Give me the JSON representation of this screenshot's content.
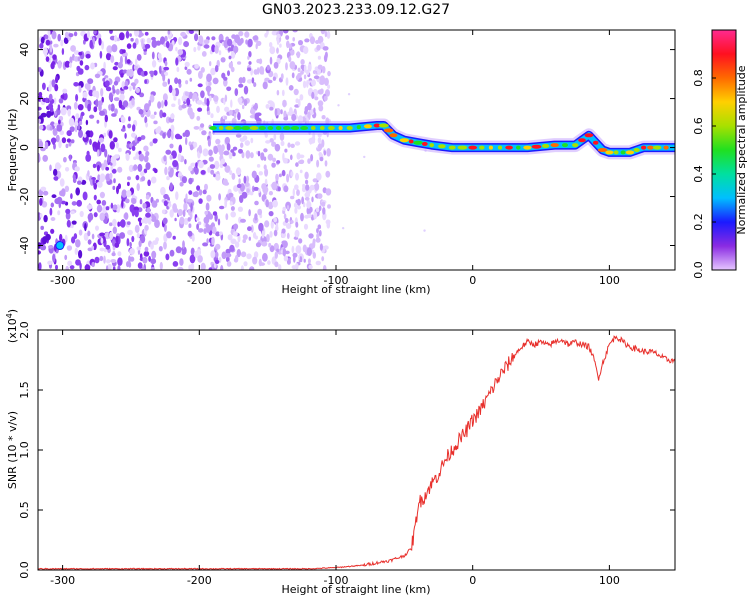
{
  "figure": {
    "title": "GN03.2023.233.09.12.G27"
  },
  "chart_data": [
    {
      "type": "heatmap",
      "title": "GN03.2023.233.09.12.G27",
      "xlabel": "Height of straight line (km)",
      "ylabel": "Frequency (Hz)",
      "xlim": [
        -318,
        148
      ],
      "ylim": [
        -50,
        48
      ],
      "xticks": [
        -300,
        -200,
        -100,
        0,
        100
      ],
      "xtick_labels": [
        "-300",
        "-200",
        "-100",
        "0",
        "100"
      ],
      "yticks": [
        -40,
        -20,
        0,
        20,
        40
      ],
      "ytick_labels": [
        "-40",
        "-20",
        "0",
        "20",
        "40"
      ],
      "noise_extent_x": [
        -318,
        -105
      ],
      "track": {
        "x": [
          -190,
          -160,
          -130,
          -110,
          -90,
          -70,
          -65,
          -58,
          -50,
          -40,
          -30,
          -15,
          0,
          20,
          40,
          60,
          75,
          80,
          85,
          90,
          95,
          100,
          105,
          115,
          125,
          135,
          148
        ],
        "freq": [
          8,
          8,
          8,
          8,
          8,
          9,
          9,
          5,
          3,
          2,
          1,
          0,
          0,
          0,
          0,
          1,
          1,
          3,
          5,
          2,
          -1,
          -2,
          -2,
          -2,
          0,
          0,
          0
        ]
      },
      "colorbar": {
        "label": "Normalized spectral amplitude",
        "ticks": [
          0.0,
          0.2,
          0.4,
          0.6,
          0.8
        ],
        "tick_labels": [
          "0.0",
          "0.2",
          "0.4",
          "0.6",
          "0.8"
        ],
        "range": [
          0,
          1
        ]
      }
    },
    {
      "type": "line",
      "xlabel": "Height of straight line (km)",
      "ylabel": "SNR (10 * v/v)",
      "exponent_label": "(x10",
      "exponent_power": "4",
      "exponent_close": ")",
      "xlim": [
        -318,
        148
      ],
      "ylim": [
        0,
        2.0
      ],
      "xticks": [
        -300,
        -200,
        -100,
        0,
        100
      ],
      "xtick_labels": [
        "-300",
        "-200",
        "-100",
        "0",
        "100"
      ],
      "yticks": [
        0.0,
        0.5,
        1.0,
        1.5,
        2.0
      ],
      "ytick_labels": [
        "0.0",
        "0.5",
        "1.0",
        "1.5",
        "2.0"
      ],
      "line_color": "#e8302c",
      "series": [
        {
          "name": "SNR",
          "x": [
            -318,
            -300,
            -250,
            -200,
            -150,
            -120,
            -100,
            -90,
            -80,
            -70,
            -60,
            -50,
            -45,
            -42,
            -40,
            -35,
            -30,
            -25,
            -20,
            -15,
            -10,
            -5,
            0,
            5,
            10,
            15,
            20,
            25,
            30,
            35,
            40,
            45,
            50,
            55,
            60,
            65,
            70,
            75,
            80,
            85,
            88,
            90,
            92,
            95,
            100,
            105,
            110,
            115,
            120,
            125,
            130,
            135,
            140,
            148
          ],
          "y": [
            0.01,
            0.01,
            0.01,
            0.01,
            0.01,
            0.01,
            0.02,
            0.03,
            0.04,
            0.06,
            0.08,
            0.12,
            0.18,
            0.35,
            0.55,
            0.62,
            0.72,
            0.8,
            0.92,
            1.0,
            1.08,
            1.15,
            1.25,
            1.32,
            1.42,
            1.52,
            1.62,
            1.7,
            1.78,
            1.85,
            1.9,
            1.88,
            1.9,
            1.87,
            1.9,
            1.92,
            1.88,
            1.9,
            1.88,
            1.86,
            1.78,
            1.7,
            1.6,
            1.72,
            1.88,
            1.95,
            1.9,
            1.86,
            1.84,
            1.82,
            1.82,
            1.8,
            1.76,
            1.74
          ]
        }
      ]
    }
  ]
}
